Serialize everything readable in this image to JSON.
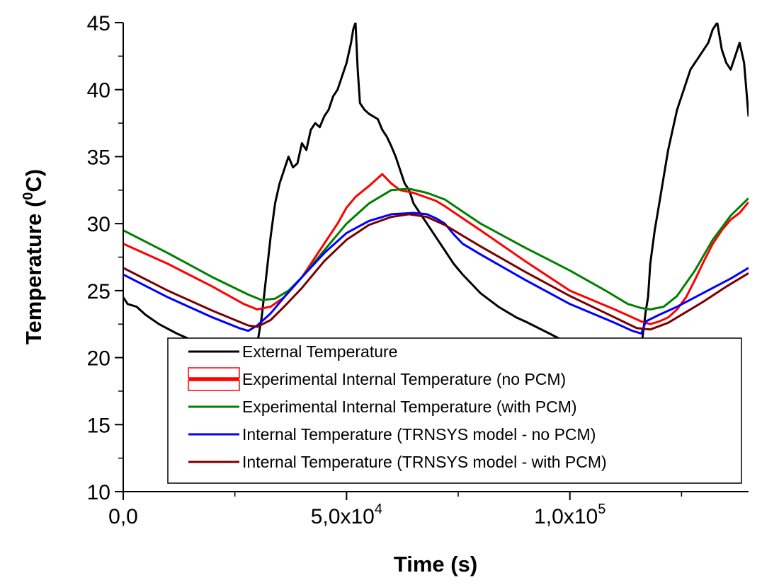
{
  "chart_data": {
    "type": "line",
    "title": "",
    "xlabel": "Time (s)",
    "ylabel_main": "Temperature (",
    "ylabel_sup": "0",
    "ylabel_end": "C)",
    "xlim": [
      0,
      140000
    ],
    "ylim": [
      10,
      45
    ],
    "y_ticks": [
      10,
      15,
      20,
      25,
      30,
      35,
      40,
      45
    ],
    "y_tick_labels": [
      "10",
      "15",
      "20",
      "25",
      "30",
      "35",
      "40",
      "45"
    ],
    "x_ticks": [
      {
        "value": 0,
        "mantissa": "0,0",
        "exp": ""
      },
      {
        "value": 50000,
        "mantissa": "5,0x10",
        "exp": "4"
      },
      {
        "value": 100000,
        "mantissa": "1,0x10",
        "exp": "5"
      }
    ],
    "grid": false,
    "legend_position": "bottom-right",
    "series": [
      {
        "name": "External Temperature",
        "color": "#000000",
        "x": [
          0,
          1000,
          3000,
          5000,
          8000,
          12000,
          16000,
          20000,
          24000,
          27000,
          29000,
          30000,
          31000,
          32000,
          33000,
          34000,
          35000,
          36000,
          37000,
          38000,
          39000,
          40000,
          41000,
          42000,
          43000,
          44000,
          45000,
          46000,
          47000,
          48000,
          49000,
          50000,
          51000,
          51500,
          52000,
          52500,
          53000,
          54000,
          55000,
          56000,
          57000,
          58000,
          59000,
          60000,
          61000,
          62000,
          63000,
          64000,
          65000,
          66000,
          67000,
          68000,
          70000,
          72000,
          74000,
          76000,
          78000,
          80000,
          82000,
          84000,
          86000,
          88000,
          90000,
          93000,
          96000,
          100000,
          104000,
          108000,
          112000,
          115000,
          116000,
          117000,
          117500,
          118000,
          119000,
          120000,
          121000,
          122000,
          123000,
          124000,
          125000,
          126000,
          127000,
          128000,
          129000,
          130000,
          131000,
          132000,
          133000,
          134000,
          135000,
          136000,
          137000,
          138000,
          139000,
          140000
        ],
        "values": [
          24.5,
          24.0,
          23.8,
          23.2,
          22.5,
          21.8,
          21.2,
          20.5,
          19.8,
          19.4,
          19.3,
          21.0,
          23.0,
          26.0,
          29.0,
          31.5,
          33.0,
          34.0,
          35.0,
          34.2,
          34.5,
          36.0,
          35.5,
          37.0,
          37.5,
          37.2,
          38.0,
          38.5,
          39.5,
          40.0,
          41.0,
          42.0,
          43.5,
          44.5,
          45.0,
          41.5,
          39.0,
          38.5,
          38.2,
          38.0,
          37.8,
          37.0,
          36.5,
          35.8,
          35.0,
          34.0,
          33.0,
          32.5,
          31.5,
          31.0,
          30.5,
          30.0,
          29.0,
          28.0,
          27.0,
          26.2,
          25.5,
          24.8,
          24.3,
          23.8,
          23.4,
          23.0,
          22.7,
          22.2,
          21.7,
          21.0,
          20.3,
          19.8,
          19.5,
          19.6,
          20.8,
          23.5,
          24.5,
          27.0,
          29.5,
          31.5,
          33.5,
          35.5,
          37.0,
          38.5,
          39.5,
          40.5,
          41.5,
          42.0,
          42.5,
          43.0,
          43.5,
          44.5,
          45.0,
          43.0,
          42.0,
          41.5,
          42.5,
          43.5,
          42.0,
          38.0
        ]
      },
      {
        "name": "Experimental Internal Temperature (no PCM)",
        "color": "#ff0000",
        "x": [
          0,
          10000,
          20000,
          27000,
          30000,
          33000,
          36000,
          40000,
          44000,
          48000,
          50000,
          52000,
          55000,
          58000,
          60000,
          62000,
          65000,
          70000,
          72000,
          80000,
          90000,
          100000,
          110000,
          114000,
          116000,
          118000,
          120000,
          122000,
          124000,
          126000,
          128000,
          130000,
          132000,
          134000,
          136000,
          138000,
          140000
        ],
        "values": [
          28.5,
          27.0,
          25.3,
          24.0,
          23.6,
          23.8,
          24.5,
          26.0,
          28.0,
          30.0,
          31.2,
          32.0,
          32.8,
          33.7,
          33.0,
          32.5,
          32.3,
          31.7,
          31.3,
          29.5,
          27.2,
          25.0,
          23.6,
          23.0,
          22.7,
          22.5,
          22.7,
          23.0,
          23.6,
          24.5,
          25.8,
          27.2,
          28.5,
          29.5,
          30.3,
          30.8,
          31.6
        ]
      },
      {
        "name": "Experimental Internal Temperature (with PCM)",
        "color": "#008000",
        "x": [
          0,
          10000,
          20000,
          28000,
          31000,
          34000,
          37000,
          40000,
          45000,
          50000,
          55000,
          60000,
          64000,
          68000,
          72000,
          80000,
          90000,
          100000,
          108000,
          113000,
          116000,
          118000,
          121000,
          124000,
          128000,
          132000,
          136000,
          140000
        ],
        "values": [
          29.5,
          27.8,
          26.0,
          24.7,
          24.3,
          24.4,
          25.0,
          26.0,
          28.0,
          30.0,
          31.5,
          32.5,
          32.6,
          32.3,
          31.8,
          30.0,
          28.2,
          26.5,
          25.0,
          24.0,
          23.7,
          23.6,
          23.8,
          24.6,
          26.5,
          28.8,
          30.6,
          31.9
        ]
      },
      {
        "name": "Internal Temperature (TRNSYS model - no PCM)",
        "color": "#0000ff",
        "x": [
          0,
          10000,
          20000,
          26000,
          28000,
          30000,
          33000,
          36000,
          40000,
          45000,
          50000,
          55000,
          60000,
          65000,
          68000,
          70000,
          72000,
          74000,
          76000,
          80000,
          90000,
          100000,
          110000,
          114000,
          116000,
          117000,
          120000,
          124000,
          128000,
          132000,
          136000,
          140000
        ],
        "values": [
          26.2,
          24.5,
          23.0,
          22.2,
          22.0,
          22.4,
          23.3,
          24.5,
          26.0,
          27.8,
          29.3,
          30.2,
          30.7,
          30.8,
          30.7,
          30.4,
          30.0,
          29.2,
          28.5,
          27.7,
          25.8,
          24.0,
          22.6,
          22.0,
          21.8,
          22.7,
          23.2,
          23.8,
          24.5,
          25.2,
          25.9,
          26.7
        ]
      },
      {
        "name": "Internal Temperature (TRNSYS model - with PCM)",
        "color": "#7a0000",
        "x": [
          0,
          10000,
          20000,
          28000,
          30000,
          33000,
          36000,
          40000,
          45000,
          50000,
          55000,
          60000,
          64000,
          68000,
          72000,
          76000,
          80000,
          90000,
          100000,
          110000,
          115000,
          118000,
          122000,
          126000,
          130000,
          135000,
          140000
        ],
        "values": [
          26.7,
          25.0,
          23.5,
          22.4,
          22.3,
          22.8,
          23.8,
          25.2,
          27.2,
          28.8,
          29.9,
          30.5,
          30.7,
          30.5,
          29.9,
          29.1,
          28.3,
          26.4,
          24.6,
          23.0,
          22.2,
          22.1,
          22.6,
          23.4,
          24.2,
          25.3,
          26.3
        ]
      }
    ]
  }
}
